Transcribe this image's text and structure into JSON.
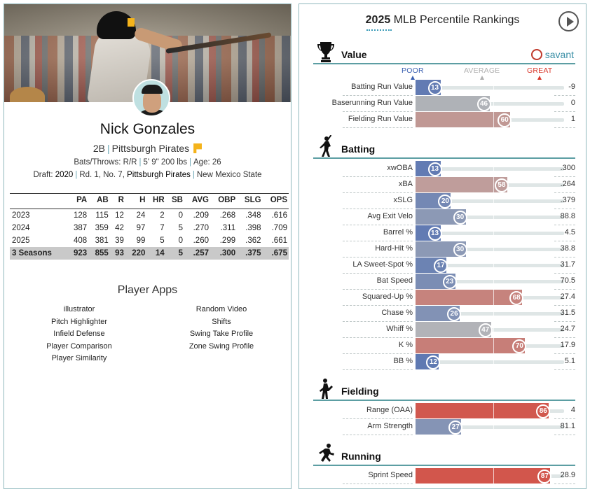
{
  "player": {
    "name": "Nick Gonzales",
    "position": "2B",
    "team": "Pittsburgh Pirates",
    "bats_throws": "Bats/Throws: R/R",
    "height_weight": "5' 9\" 200 lbs",
    "age": "Age: 26",
    "draft_prefix": "Draft: ",
    "draft_year": "2020",
    "draft_pick": "Rd. 1, No. 7,",
    "draft_team": "Pittsburgh Pirates",
    "school": "New Mexico State"
  },
  "stats": {
    "headers": [
      "",
      "PA",
      "AB",
      "R",
      "H",
      "HR",
      "SB",
      "AVG",
      "OBP",
      "SLG",
      "OPS"
    ],
    "rows": [
      [
        "2023",
        "128",
        "115",
        "12",
        "24",
        "2",
        "0",
        ".209",
        ".268",
        ".348",
        ".616"
      ],
      [
        "2024",
        "387",
        "359",
        "42",
        "97",
        "7",
        "5",
        ".270",
        ".311",
        ".398",
        ".709"
      ],
      [
        "2025",
        "408",
        "381",
        "39",
        "99",
        "5",
        "0",
        ".260",
        ".299",
        ".362",
        ".661"
      ]
    ],
    "total": [
      "3 Seasons",
      "923",
      "855",
      "93",
      "220",
      "14",
      "5",
      ".257",
      ".300",
      ".375",
      ".675"
    ]
  },
  "apps": {
    "title": "Player Apps",
    "left": [
      "illustrator",
      "Pitch Highlighter",
      "Infield Defense",
      "Player Comparison",
      "Player Similarity"
    ],
    "right": [
      "Random Video",
      "Shifts",
      "Swing Take Profile",
      "Zone Swing Profile"
    ]
  },
  "rankings": {
    "title_year": "2025",
    "title_rest": " MLB Percentile Rankings",
    "brand": "savant",
    "scale": {
      "poor": "POOR",
      "average": "AVERAGE",
      "great": "GREAT"
    },
    "colors": {
      "poor": "#3a5fb0",
      "average": "#b8b8b8",
      "great": "#d9392c"
    },
    "sections": [
      {
        "name": "Value",
        "icon": "trophy-icon",
        "rows": [
          {
            "label": "Batting Run Value",
            "pct": 13,
            "value": "-9"
          },
          {
            "label": "Baserunning Run Value",
            "pct": 46,
            "value": "0"
          },
          {
            "label": "Fielding Run Value",
            "pct": 60,
            "value": "1"
          }
        ]
      },
      {
        "name": "Batting",
        "icon": "batter-icon",
        "rows": [
          {
            "label": "xwOBA",
            "pct": 13,
            "value": ".300"
          },
          {
            "label": "xBA",
            "pct": 58,
            "value": ".264"
          },
          {
            "label": "xSLG",
            "pct": 20,
            "value": ".379"
          },
          {
            "label": "Avg Exit Velo",
            "pct": 30,
            "value": "88.8"
          },
          {
            "label": "Barrel %",
            "pct": 13,
            "value": "4.5"
          },
          {
            "label": "Hard-Hit %",
            "pct": 30,
            "value": "38.8"
          },
          {
            "label": "LA Sweet-Spot %",
            "pct": 17,
            "value": "31.7"
          },
          {
            "label": "Bat Speed",
            "pct": 23,
            "value": "70.5"
          },
          {
            "label": "Squared-Up %",
            "pct": 68,
            "value": "27.4"
          },
          {
            "label": "Chase %",
            "pct": 26,
            "value": "31.5"
          },
          {
            "label": "Whiff %",
            "pct": 47,
            "value": "24.7"
          },
          {
            "label": "K %",
            "pct": 70,
            "value": "17.9"
          },
          {
            "label": "BB %",
            "pct": 12,
            "value": "5.1"
          }
        ]
      },
      {
        "name": "Fielding",
        "icon": "fielder-icon",
        "rows": [
          {
            "label": "Range (OAA)",
            "pct": 86,
            "value": "4"
          },
          {
            "label": "Arm Strength",
            "pct": 27,
            "value": "81.1"
          }
        ]
      },
      {
        "name": "Running",
        "icon": "runner-icon",
        "rows": [
          {
            "label": "Sprint Speed",
            "pct": 87,
            "value": "28.9"
          }
        ]
      }
    ]
  }
}
